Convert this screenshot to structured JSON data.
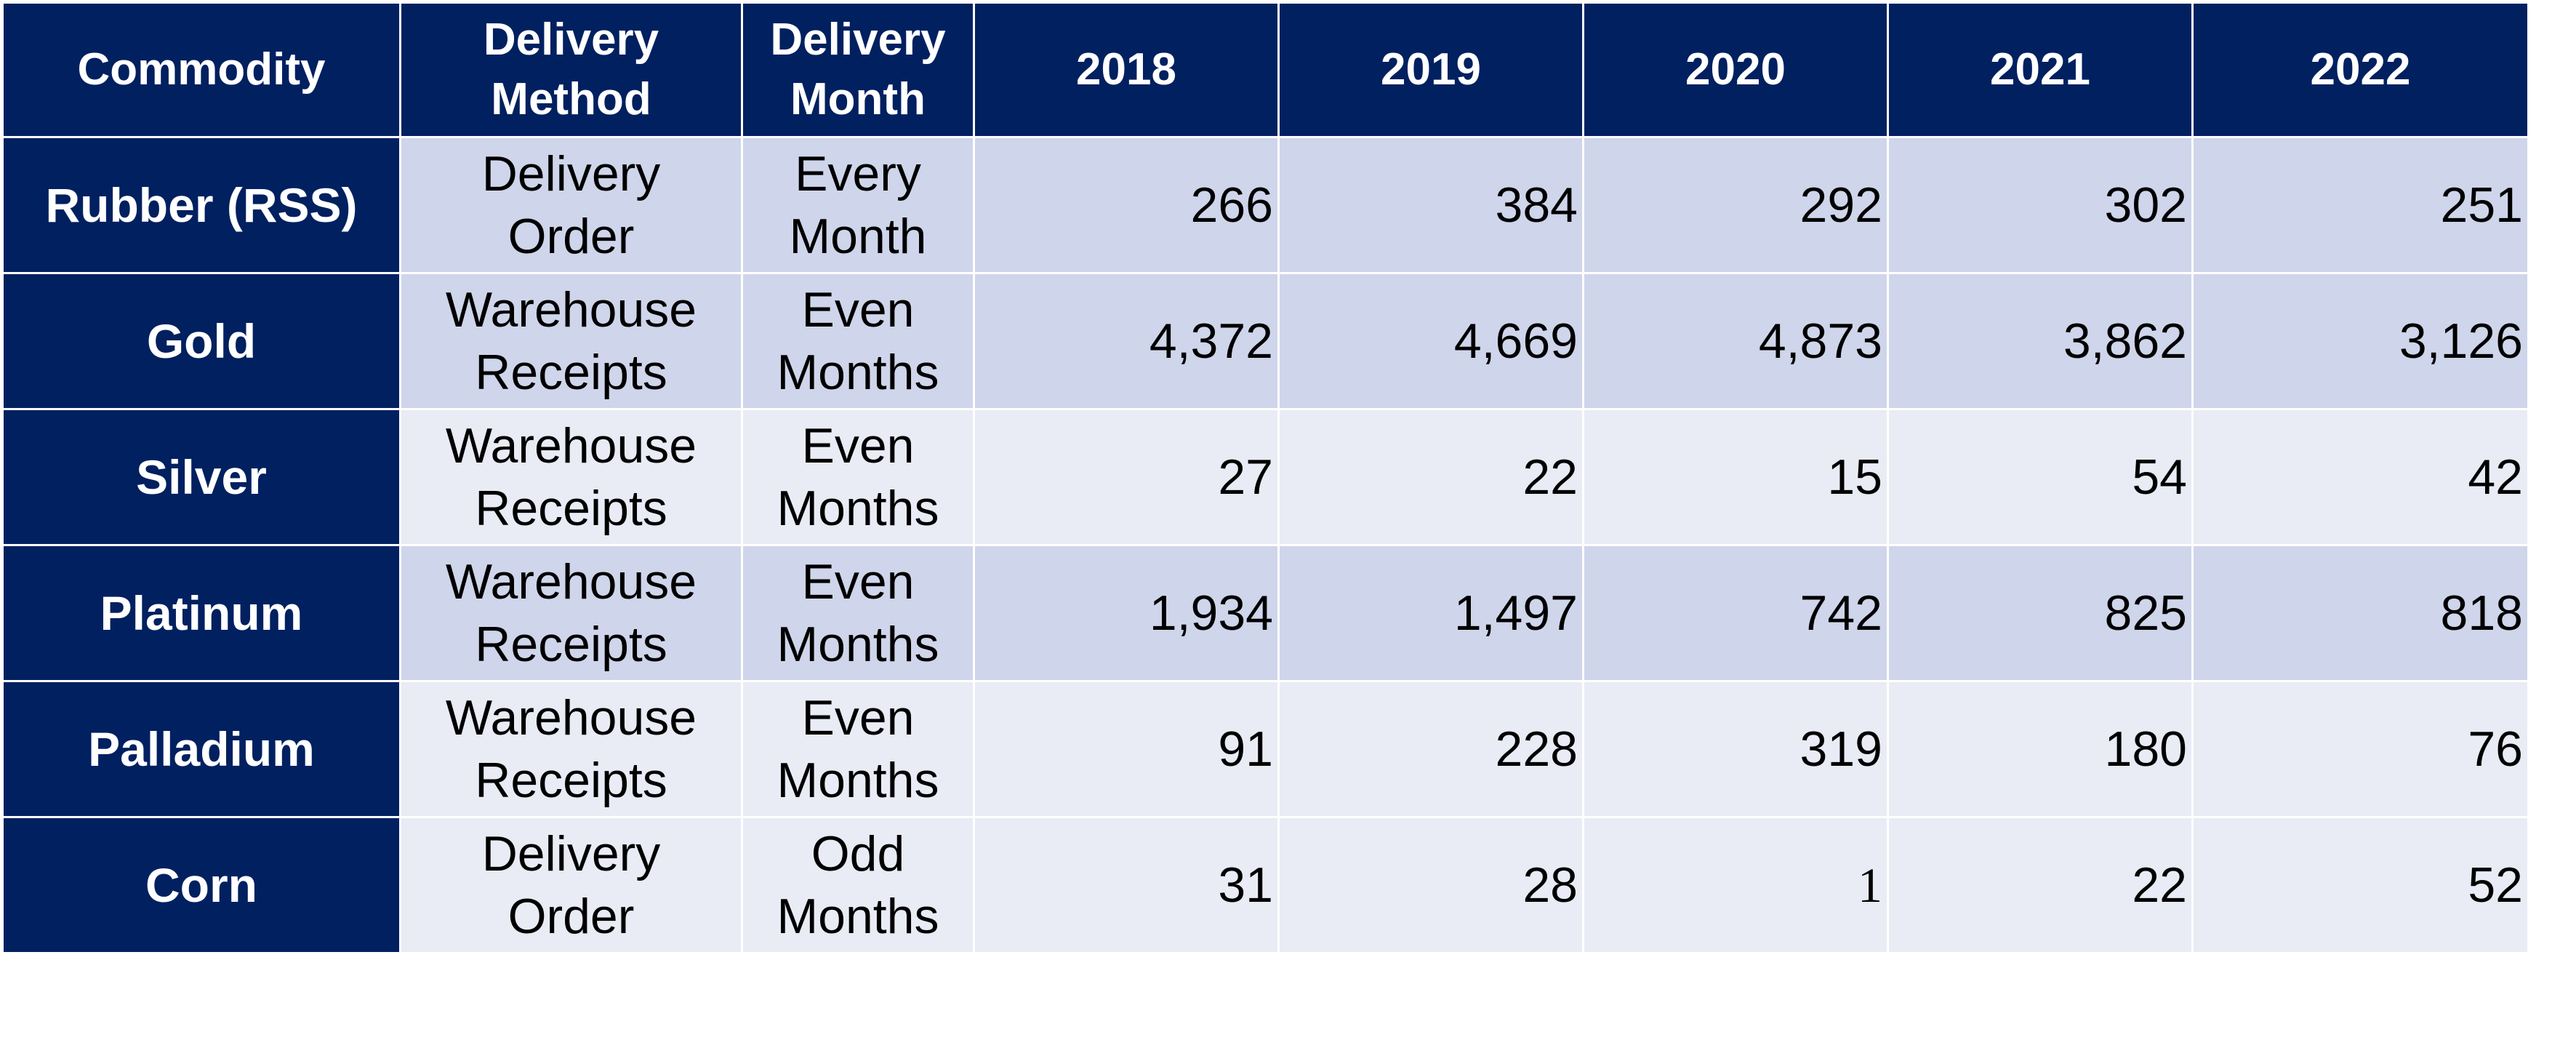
{
  "table": {
    "headers": {
      "commodity": "Commodity",
      "method": [
        "Delivery",
        "Method"
      ],
      "month": [
        "Delivery",
        "Month"
      ],
      "years": [
        "2018",
        "2019",
        "2020",
        "2021",
        "2022"
      ]
    },
    "rows": [
      {
        "commodity": "Rubber (RSS)",
        "method": [
          "Delivery",
          "Order"
        ],
        "month": [
          "Every",
          "Month"
        ],
        "values": [
          "266",
          "384",
          "292",
          "302",
          "251"
        ],
        "shade": "dark"
      },
      {
        "commodity": "Gold",
        "method": [
          "Warehouse",
          "Receipts"
        ],
        "month": [
          "Even",
          "Months"
        ],
        "values": [
          "4,372",
          "4,669",
          "4,873",
          "3,862",
          "3,126"
        ],
        "shade": "dark"
      },
      {
        "commodity": "Silver",
        "method": [
          "Warehouse",
          "Receipts"
        ],
        "month": [
          "Even",
          "Months"
        ],
        "values": [
          "27",
          "22",
          "15",
          "54",
          "42"
        ],
        "shade": "light"
      },
      {
        "commodity": "Platinum",
        "method": [
          "Warehouse",
          "Receipts"
        ],
        "month": [
          "Even",
          "Months"
        ],
        "values": [
          "1,934",
          "1,497",
          "742",
          "825",
          "818"
        ],
        "shade": "dark"
      },
      {
        "commodity": "Palladium",
        "method": [
          "Warehouse",
          "Receipts"
        ],
        "month": [
          "Even",
          "Months"
        ],
        "values": [
          "91",
          "228",
          "319",
          "180",
          "76"
        ],
        "shade": "light"
      },
      {
        "commodity": "Corn",
        "method": [
          "Delivery",
          "Order"
        ],
        "month": [
          "Odd",
          "Months"
        ],
        "values": [
          "31",
          "28",
          "1",
          "22",
          "52"
        ],
        "shade": "light"
      }
    ]
  },
  "colors": {
    "header_bg": "#002060",
    "dark_row_bg": "#cfd5ea",
    "light_row_bg": "#e9ebf5"
  }
}
